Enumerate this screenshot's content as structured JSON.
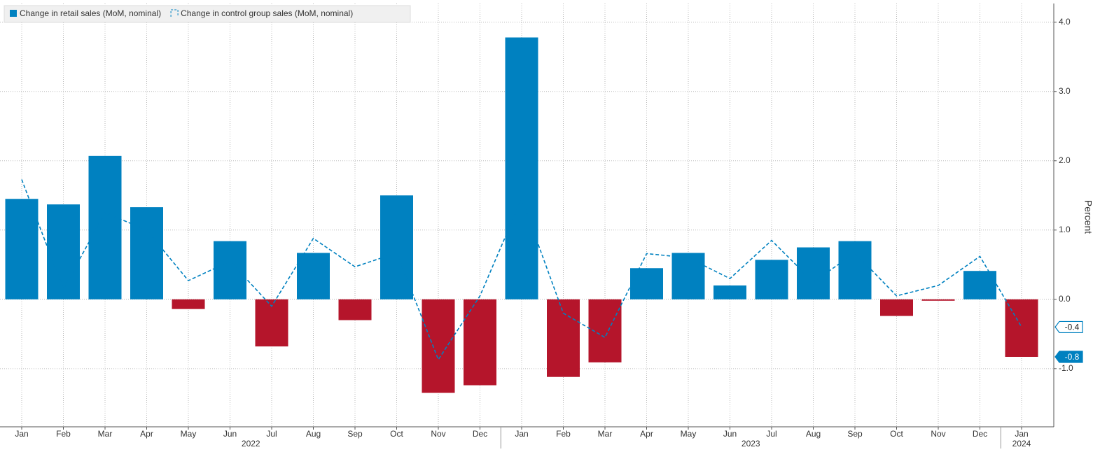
{
  "chart_data": {
    "type": "bar",
    "y_label": "Percent",
    "categories": [
      "Jan",
      "Feb",
      "Mar",
      "Apr",
      "May",
      "Jun",
      "Jul",
      "Aug",
      "Sep",
      "Oct",
      "Nov",
      "Dec",
      "Jan",
      "Feb",
      "Mar",
      "Apr",
      "May",
      "Jun",
      "Jul",
      "Aug",
      "Sep",
      "Oct",
      "Nov",
      "Dec",
      "Jan"
    ],
    "years": [
      "2022",
      "2023",
      "2024"
    ],
    "series": [
      {
        "name": "Change in retail sales (MoM, nominal)",
        "type": "bar",
        "color": "#0081c0",
        "negative_color": "#b5152b",
        "values": [
          1.45,
          1.37,
          2.07,
          1.33,
          -0.14,
          0.84,
          -0.68,
          0.67,
          -0.3,
          1.5,
          -1.35,
          -1.24,
          3.78,
          -1.12,
          -0.91,
          0.45,
          0.67,
          0.2,
          0.57,
          0.75,
          0.84,
          -0.24,
          -0.02,
          0.41,
          -0.83
        ],
        "value_labels": [
          null,
          null,
          null,
          null,
          null,
          null,
          null,
          null,
          null,
          null,
          null,
          null,
          null,
          null,
          null,
          null,
          null,
          null,
          null,
          null,
          null,
          null,
          null,
          null,
          "-0.8"
        ]
      },
      {
        "name": "Change in control group sales (MoM, nominal)",
        "type": "line",
        "dashed": true,
        "color": "#0081c0",
        "values": [
          1.73,
          0.15,
          1.25,
          1.0,
          0.27,
          0.55,
          -0.1,
          0.88,
          0.47,
          0.67,
          -0.87,
          0.05,
          1.45,
          -0.2,
          -0.55,
          0.66,
          0.6,
          0.3,
          0.85,
          0.25,
          0.67,
          0.05,
          0.2,
          0.62,
          -0.4
        ],
        "value_labels": [
          null,
          null,
          null,
          null,
          null,
          null,
          null,
          null,
          null,
          null,
          null,
          null,
          null,
          null,
          null,
          null,
          null,
          null,
          null,
          null,
          null,
          null,
          null,
          null,
          "-0.4"
        ]
      }
    ],
    "ylim": [
      -1.84,
      4.27
    ],
    "yticks": [
      {
        "value": 4,
        "label": "4.0"
      },
      {
        "value": 3,
        "label": "3.0"
      },
      {
        "value": 2,
        "label": "2.0"
      },
      {
        "value": 1,
        "label": "1.0"
      },
      {
        "value": 0,
        "label": "0.0"
      },
      {
        "value": -1,
        "label": "-1.0"
      }
    ],
    "grid": true,
    "legend": "top-left"
  }
}
